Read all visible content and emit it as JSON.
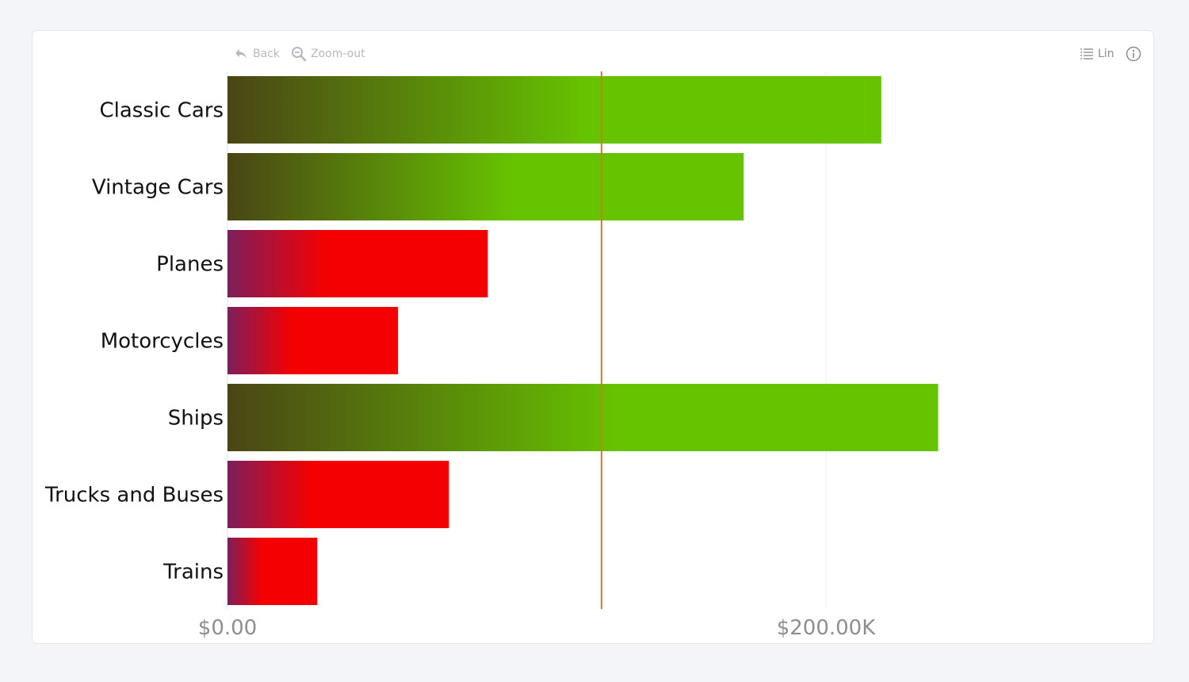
{
  "toolbar": {
    "back_label": "Back",
    "zoom_out_label": "Zoom-out",
    "scale_label": "Lin",
    "back_icon": "undo-arrow-icon",
    "zoom_icon": "magnifier-minus-icon",
    "scale_icon": "list-icon",
    "info_icon": "info-icon"
  },
  "chart_data": {
    "type": "bar",
    "orientation": "horizontal",
    "categories": [
      "Classic Cars",
      "Vintage Cars",
      "Planes",
      "Motorcycles",
      "Ships",
      "Trucks and Buses",
      "Trains"
    ],
    "values": [
      218500,
      172500,
      87000,
      57000,
      237500,
      74000,
      30000
    ],
    "xlim": [
      0,
      300000
    ],
    "x_ticks": [
      0,
      200000
    ],
    "x_tick_labels": [
      "$0.00",
      "$200.00K"
    ],
    "reference_line": 125000,
    "grid": true,
    "colors": {
      "above_reference": "#66c300",
      "above_reference_dark": "#4a4515",
      "below_reference": "#f50000",
      "below_reference_dark": "#7d1f5c",
      "reference_line": "#d27a1c",
      "grid": "#eeeeee"
    }
  }
}
